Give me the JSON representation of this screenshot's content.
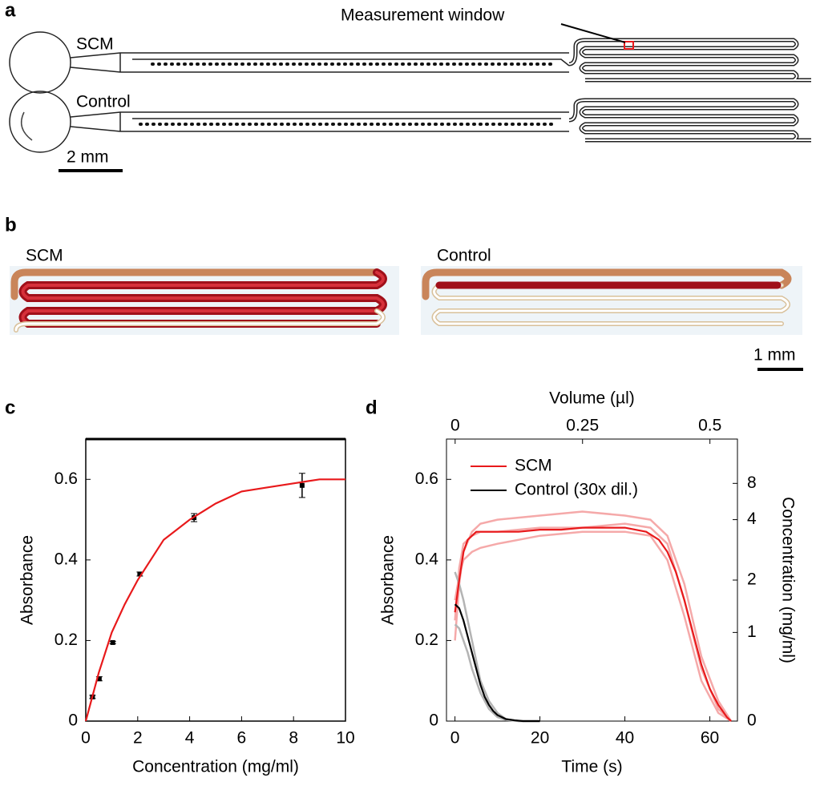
{
  "panel_a": {
    "label": "a",
    "annotation": "Measurement window",
    "rows": [
      "SCM",
      "Control"
    ],
    "scale_bar": "2 mm"
  },
  "panel_b": {
    "label": "b",
    "captions": [
      "SCM",
      "Control"
    ],
    "scale_bar": "1 mm"
  },
  "chart_data": [
    {
      "type": "scatter",
      "label": "c",
      "x_label": "Concentration (mg/ml)",
      "y_label": "Absorbance",
      "xlim": [
        0,
        10
      ],
      "xticks": [
        0,
        2,
        4,
        6,
        8,
        10
      ],
      "ylim": [
        0,
        0.7
      ],
      "yticks": [
        0,
        0.2,
        0.4,
        0.6
      ],
      "series": [
        {
          "color": "#000000",
          "x": [
            0.26,
            0.52,
            1.04,
            2.08,
            4.17,
            8.33
          ],
          "values": [
            0.06,
            0.105,
            0.195,
            0.365,
            0.505,
            0.585
          ],
          "errors": [
            0.004,
            0.005,
            0.003,
            0.005,
            0.01,
            0.03
          ]
        },
        {
          "color": "#e8191b",
          "x": [
            0,
            0.5,
            1,
            1.5,
            2,
            3,
            4,
            5,
            6,
            7,
            8,
            9,
            10
          ],
          "values": [
            0,
            0.12,
            0.22,
            0.29,
            0.35,
            0.45,
            0.5,
            0.54,
            0.57,
            0.58,
            0.59,
            0.6,
            0.6
          ]
        }
      ]
    },
    {
      "type": "line",
      "label": "d",
      "x_label": "Time (s)",
      "y_label": "Absorbance",
      "x2_label": "Volume (µl)",
      "y2_label": "Concentration (mg/ml)",
      "xlim": [
        -2,
        66.5
      ],
      "xticks": [
        0,
        20,
        40,
        60
      ],
      "x2lim": [
        -0.017,
        0.554
      ],
      "x2ticks": [
        0,
        0.25,
        0.5
      ],
      "ylim": [
        0,
        0.7
      ],
      "yticks": [
        0,
        0.2,
        0.4,
        0.6
      ],
      "y2ticks": [
        0,
        1,
        2,
        4,
        8
      ],
      "legend": "upper left",
      "series": [
        {
          "color": "#f5a9a9",
          "x": [
            0,
            1,
            2,
            4,
            6,
            10,
            20,
            30,
            40,
            46,
            50,
            54,
            58,
            62,
            65
          ],
          "values": [
            0.2,
            0.34,
            0.42,
            0.47,
            0.49,
            0.5,
            0.51,
            0.52,
            0.51,
            0.5,
            0.46,
            0.34,
            0.16,
            0.05,
            0
          ]
        },
        {
          "color": "#f5a9a9",
          "x": [
            0,
            1,
            2,
            4,
            6,
            10,
            20,
            30,
            40,
            46,
            50,
            54,
            58,
            62,
            65
          ],
          "values": [
            0.3,
            0.36,
            0.4,
            0.42,
            0.43,
            0.44,
            0.46,
            0.47,
            0.47,
            0.46,
            0.4,
            0.26,
            0.1,
            0.02,
            0
          ]
        },
        {
          "color": "#f5a9a9",
          "x": [
            0,
            1,
            2,
            4,
            6,
            10,
            20,
            30,
            40,
            46,
            50,
            54,
            58,
            62,
            65
          ],
          "values": [
            0.25,
            0.38,
            0.44,
            0.46,
            0.47,
            0.47,
            0.48,
            0.48,
            0.49,
            0.48,
            0.44,
            0.3,
            0.13,
            0.03,
            0
          ]
        },
        {
          "color": "#b4b4b4",
          "x": [
            0,
            1,
            2,
            3,
            4,
            5,
            6,
            8,
            10,
            12,
            15,
            20
          ],
          "values": [
            0.37,
            0.34,
            0.3,
            0.25,
            0.2,
            0.15,
            0.1,
            0.05,
            0.02,
            0.005,
            0,
            0
          ]
        },
        {
          "color": "#b4b4b4",
          "x": [
            0,
            1,
            2,
            3,
            4,
            5,
            6,
            8,
            10,
            12,
            15,
            20
          ],
          "values": [
            0.24,
            0.23,
            0.2,
            0.17,
            0.13,
            0.1,
            0.07,
            0.03,
            0.01,
            0.003,
            0,
            0
          ]
        },
        {
          "name": "SCM",
          "color": "#e8191b",
          "x": [
            0,
            1,
            2,
            3,
            4,
            5,
            6,
            8,
            10,
            15,
            20,
            25,
            30,
            35,
            40,
            45,
            48,
            50,
            52,
            54,
            56,
            58,
            60,
            62,
            64,
            65
          ],
          "values": [
            0.27,
            0.35,
            0.42,
            0.45,
            0.46,
            0.47,
            0.47,
            0.47,
            0.47,
            0.47,
            0.475,
            0.475,
            0.48,
            0.48,
            0.48,
            0.47,
            0.45,
            0.42,
            0.37,
            0.3,
            0.22,
            0.14,
            0.08,
            0.04,
            0.01,
            0
          ]
        },
        {
          "name": "Control (30x dil.)",
          "color": "#000000",
          "x": [
            0,
            1,
            2,
            3,
            4,
            5,
            6,
            7,
            8,
            9,
            10,
            12,
            14,
            16,
            18,
            20
          ],
          "values": [
            0.29,
            0.28,
            0.25,
            0.21,
            0.17,
            0.13,
            0.09,
            0.06,
            0.04,
            0.025,
            0.015,
            0.005,
            0.002,
            0,
            0,
            0
          ]
        }
      ]
    }
  ]
}
